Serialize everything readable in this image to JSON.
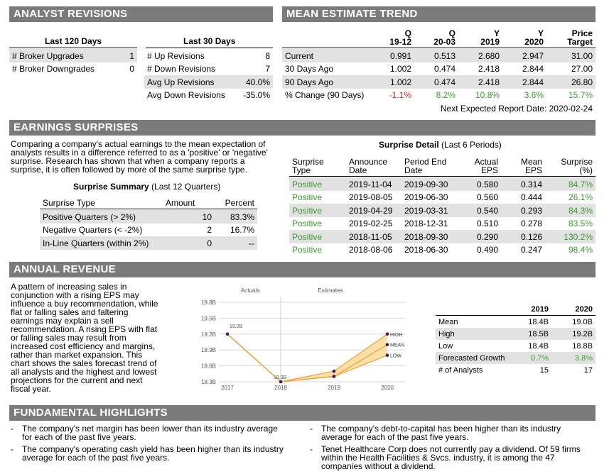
{
  "analyst_revisions": {
    "title": "ANALYST REVISIONS",
    "col1_header": "Last 120 Days",
    "col2_header": "Last 30 Days",
    "left_rows": [
      {
        "label": "# Broker Upgrades",
        "value": "1"
      },
      {
        "label": "# Broker Downgrades",
        "value": "0"
      }
    ],
    "right_rows": [
      {
        "label": "# Up Revisions",
        "value": "8"
      },
      {
        "label": "# Down Revisions",
        "value": "7"
      },
      {
        "label": "Avg Up Revisions",
        "value": "40.0%"
      },
      {
        "label": "Avg Down Revisions",
        "value": "-35.0%"
      }
    ]
  },
  "mean_estimate": {
    "title": "MEAN ESTIMATE TREND",
    "col_top": [
      "Q",
      "Q",
      "Y",
      "Y",
      "Price"
    ],
    "col_bottom": [
      "19-12",
      "20-03",
      "2019",
      "2020",
      "Target"
    ],
    "rows": [
      {
        "label": "Current",
        "values": [
          "0.991",
          "0.513",
          "2.680",
          "2.947",
          "31.00"
        ]
      },
      {
        "label": "30 Days Ago",
        "values": [
          "1.002",
          "0.474",
          "2.418",
          "2.844",
          "27.00"
        ]
      },
      {
        "label": "90 Days Ago",
        "values": [
          "1.002",
          "0.474",
          "2.418",
          "2.844",
          "26.80"
        ]
      },
      {
        "label": "% Change (90 Days)",
        "values": [
          "-1.1%",
          "8.2%",
          "10.8%",
          "3.6%",
          "15.7%"
        ]
      }
    ],
    "next_report": "Next Expected Report Date: 2020-02-24"
  },
  "earnings_surprises": {
    "title": "EARNINGS SURPRISES",
    "intro_lines": [
      "Comparing a company's actual earnings to the mean expectation of",
      "analysts results in a difference referred to as a 'positive' or 'negative'",
      "surprise. Research has shown that when a company reports a",
      "surprise, it is often followed by more of the same surprise type."
    ],
    "summary_title_bold": "Surprise Summary",
    "summary_title_rest": " (Last 12 Quarters)",
    "summary_headers": [
      "Surprise Type",
      "Amount",
      "Percent"
    ],
    "summary_rows": [
      {
        "type": "Positive Quarters (> 2%)",
        "amount": "10",
        "percent": "83.3%"
      },
      {
        "type": "Negative Quarters (< -2%)",
        "amount": "2",
        "percent": "16.7%"
      },
      {
        "type": "In-Line Quarters (within 2%)",
        "amount": "0",
        "percent": "--"
      }
    ],
    "detail_title_bold": "Surprise Detail",
    "detail_title_rest": " (Last 6 Periods)",
    "detail_headers_top": [
      "Surprise",
      "Announce",
      "Period End",
      "Actual",
      "Mean",
      "Surprise"
    ],
    "detail_headers_bottom": [
      "Type",
      "Date",
      "Date",
      "EPS",
      "EPS",
      "(%)"
    ],
    "detail_rows": [
      {
        "type": "Positive",
        "announce": "2019-11-04",
        "period": "2019-09-30",
        "actual": "0.580",
        "mean": "0.314",
        "surprise": "84.7%"
      },
      {
        "type": "Positive",
        "announce": "2019-08-05",
        "period": "2019-06-30",
        "actual": "0.560",
        "mean": "0.444",
        "surprise": "26.1%"
      },
      {
        "type": "Positive",
        "announce": "2019-04-29",
        "period": "2019-03-31",
        "actual": "0.540",
        "mean": "0.293",
        "surprise": "84.3%"
      },
      {
        "type": "Positive",
        "announce": "2019-02-25",
        "period": "2018-12-31",
        "actual": "0.510",
        "mean": "0.278",
        "surprise": "83.5%"
      },
      {
        "type": "Positive",
        "announce": "2018-11-05",
        "period": "2018-09-30",
        "actual": "0.290",
        "mean": "0.126",
        "surprise": "130.2%"
      },
      {
        "type": "Positive",
        "announce": "2018-08-06",
        "period": "2018-06-30",
        "actual": "0.490",
        "mean": "0.247",
        "surprise": "98.4%"
      }
    ]
  },
  "annual_revenue": {
    "title": "ANNUAL REVENUE",
    "intro_lines": [
      "A pattern of increasing sales in",
      "conjunction with a rising EPS may",
      "influence a buy recommendation, while",
      "flat or falling sales and faltering",
      "earnings may explain a sell",
      "recommendation. A rising EPS with flat",
      "or falling sales may result from",
      "increased cost efficiency and margins,",
      "rather than market expansion. This",
      "chart shows the sales forecast trend of",
      "all analysts and the highest and lowest",
      "projections for the current and next",
      "fiscal year."
    ],
    "table_headers": [
      "2019",
      "2020"
    ],
    "table_rows": [
      {
        "label": "Mean",
        "v2019": "18.4B",
        "v2020": "19.0B"
      },
      {
        "label": "High",
        "v2019": "18.5B",
        "v2020": "19.2B"
      },
      {
        "label": "Low",
        "v2019": "18.4B",
        "v2020": "18.8B"
      },
      {
        "label": "Forecasted Growth",
        "v2019": "0.7%",
        "v2020": "3.8%"
      },
      {
        "label": "# of Analysts",
        "v2019": "15",
        "v2020": "17"
      }
    ]
  },
  "chart_data": {
    "type": "line",
    "title": "",
    "xlabel": "",
    "ylabel": "",
    "categories": [
      "2017",
      "2018",
      "2019",
      "2020"
    ],
    "ylim": [
      18.3,
      19.8
    ],
    "yticks": [
      "19.8B",
      "19.5B",
      "19.2B",
      "18.9B",
      "18.6B",
      "18.3B"
    ],
    "ytick_values": [
      19.8,
      19.5,
      19.2,
      18.9,
      18.6,
      18.3
    ],
    "section_labels": [
      "Actuals",
      "Estimates"
    ],
    "actual_values": [
      19.2,
      18.3
    ],
    "actual_labels": [
      "19.2B",
      "18.3B"
    ],
    "series": [
      {
        "name": "HIGH",
        "values": [
          null,
          18.3,
          18.5,
          19.2
        ]
      },
      {
        "name": "MEAN",
        "values": [
          null,
          18.3,
          18.4,
          19.0
        ]
      },
      {
        "name": "LOW",
        "values": [
          null,
          18.3,
          18.4,
          18.8
        ]
      }
    ],
    "grid": true,
    "colors": {
      "line": "#f0a030",
      "band": "#fde0a8",
      "marker": "#3a1f5c",
      "grid": "#d8d8d8"
    }
  },
  "fundamental": {
    "title": "FUNDAMENTAL HIGHLIGHTS",
    "bullets": [
      {
        "dash": "-",
        "lines": [
          "The company's net margin has been lower than its industry average",
          "for each of the past five years."
        ]
      },
      {
        "dash": "-",
        "lines": [
          "The company's operating cash yield has been higher than its industry",
          "average for each of the past five years."
        ]
      },
      {
        "dash": "-",
        "lines": [
          "The company's debt-to-capital has been higher than its industry",
          "average for each of the past five years."
        ]
      },
      {
        "dash": "-",
        "lines": [
          "Tenet Healthcare Corp does not currently pay a dividend.  Of 59 firms",
          "within the Health Facilities & Svcs. industry, it is among the 47",
          "companies without a dividend."
        ]
      }
    ]
  }
}
